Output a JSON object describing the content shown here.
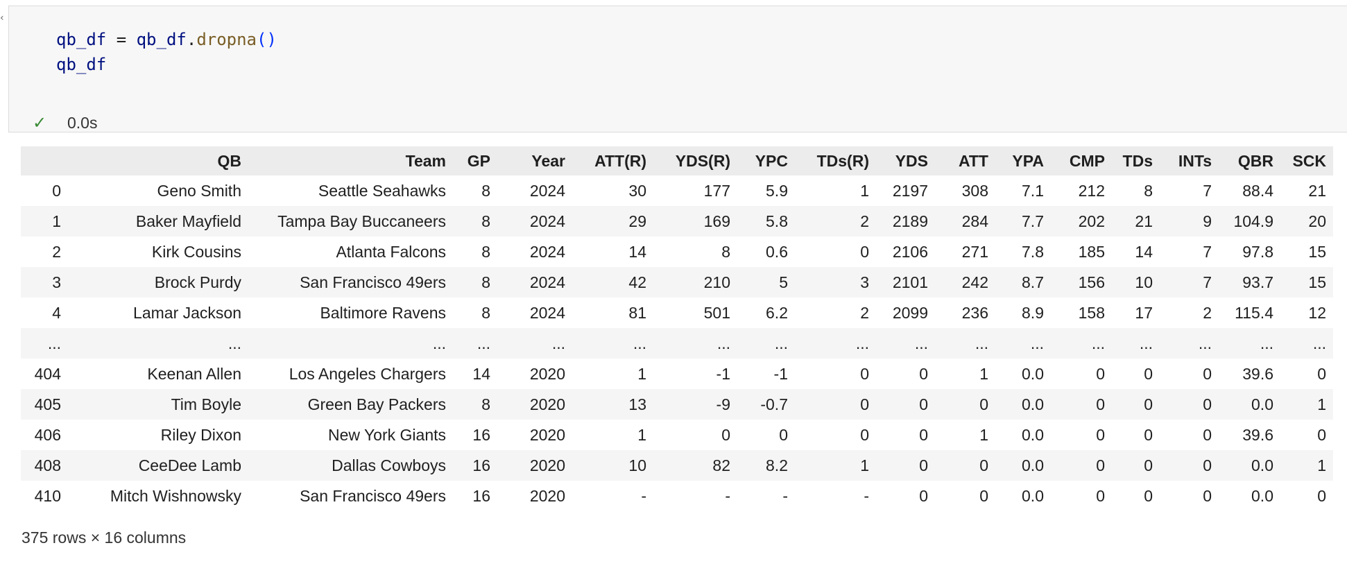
{
  "cell": {
    "code_lines": [
      {
        "var1": "qb_df",
        "op": " = ",
        "var2": "qb_df",
        "dot": ".",
        "fn": "dropna",
        "paren": "()"
      },
      {
        "var1": "qb_df"
      }
    ],
    "status_icon": "check-icon",
    "status_text": "0.0s"
  },
  "table": {
    "columns": [
      "",
      "QB",
      "Team",
      "GP",
      "Year",
      "ATT(R)",
      "YDS(R)",
      "YPC",
      "TDs(R)",
      "YDS",
      "ATT",
      "YPA",
      "CMP",
      "TDs",
      "INTs",
      "QBR",
      "SCK"
    ],
    "rows": [
      [
        "0",
        "Geno Smith",
        "Seattle Seahawks",
        "8",
        "2024",
        "30",
        "177",
        "5.9",
        "1",
        "2197",
        "308",
        "7.1",
        "212",
        "8",
        "7",
        "88.4",
        "21"
      ],
      [
        "1",
        "Baker Mayfield",
        "Tampa Bay Buccaneers",
        "8",
        "2024",
        "29",
        "169",
        "5.8",
        "2",
        "2189",
        "284",
        "7.7",
        "202",
        "21",
        "9",
        "104.9",
        "20"
      ],
      [
        "2",
        "Kirk Cousins",
        "Atlanta Falcons",
        "8",
        "2024",
        "14",
        "8",
        "0.6",
        "0",
        "2106",
        "271",
        "7.8",
        "185",
        "14",
        "7",
        "97.8",
        "15"
      ],
      [
        "3",
        "Brock Purdy",
        "San Francisco 49ers",
        "8",
        "2024",
        "42",
        "210",
        "5",
        "3",
        "2101",
        "242",
        "8.7",
        "156",
        "10",
        "7",
        "93.7",
        "15"
      ],
      [
        "4",
        "Lamar Jackson",
        "Baltimore Ravens",
        "8",
        "2024",
        "81",
        "501",
        "6.2",
        "2",
        "2099",
        "236",
        "8.9",
        "158",
        "17",
        "2",
        "115.4",
        "12"
      ],
      [
        "...",
        "...",
        "...",
        "...",
        "...",
        "...",
        "...",
        "...",
        "...",
        "...",
        "...",
        "...",
        "...",
        "...",
        "...",
        "...",
        "..."
      ],
      [
        "404",
        "Keenan Allen",
        "Los Angeles Chargers",
        "14",
        "2020",
        "1",
        "-1",
        "-1",
        "0",
        "0",
        "1",
        "0.0",
        "0",
        "0",
        "0",
        "39.6",
        "0"
      ],
      [
        "405",
        "Tim Boyle",
        "Green Bay Packers",
        "8",
        "2020",
        "13",
        "-9",
        "-0.7",
        "0",
        "0",
        "0",
        "0.0",
        "0",
        "0",
        "0",
        "0.0",
        "1"
      ],
      [
        "406",
        "Riley Dixon",
        "New York Giants",
        "16",
        "2020",
        "1",
        "0",
        "0",
        "0",
        "0",
        "1",
        "0.0",
        "0",
        "0",
        "0",
        "39.6",
        "0"
      ],
      [
        "408",
        "CeeDee Lamb",
        "Dallas Cowboys",
        "16",
        "2020",
        "10",
        "82",
        "8.2",
        "1",
        "0",
        "0",
        "0.0",
        "0",
        "0",
        "0",
        "0.0",
        "1"
      ],
      [
        "410",
        "Mitch Wishnowsky",
        "San Francisco 49ers",
        "16",
        "2020",
        "-",
        "-",
        "-",
        "-",
        "0",
        "0",
        "0.0",
        "0",
        "0",
        "0",
        "0.0",
        "0"
      ]
    ]
  },
  "footer": "375 rows × 16 columns"
}
